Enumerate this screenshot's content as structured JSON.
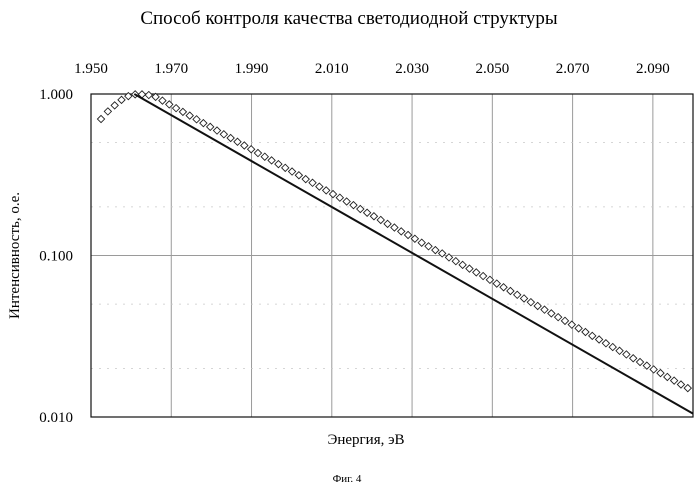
{
  "caption": "Фиг. 4",
  "chart_data": {
    "type": "scatter",
    "title": "Способ контроля качества светодиодной структуры",
    "xlabel": "Энергия, эВ",
    "ylabel": "Интенсивность, о.е.",
    "x_axis_position": "top",
    "x_tick_labels": [
      "1.950",
      "1.970",
      "1.990",
      "2.010",
      "2.030",
      "2.050",
      "2.070",
      "2.090"
    ],
    "x_ticks": [
      1.95,
      1.97,
      1.99,
      2.01,
      2.03,
      2.05,
      2.07,
      2.09
    ],
    "xlim": [
      1.95,
      2.1
    ],
    "y_tick_labels": [
      "1.000",
      "0.100",
      "0.010"
    ],
    "y_ticks": [
      1.0,
      0.1,
      0.01
    ],
    "ylim": [
      0.01,
      1.0
    ],
    "y_scale": "log",
    "grid": true,
    "colors": {
      "line": "#111111",
      "markers": "#222222",
      "grid": "#9a9a9a"
    },
    "series": [
      {
        "marker": "diamond-open",
        "x": [
          1.9525,
          1.9542,
          1.9559,
          1.9576,
          1.9593,
          1.961,
          1.9627,
          1.9644,
          1.9661,
          1.9678,
          1.9695,
          1.9712,
          1.9729,
          1.9746,
          1.9763,
          1.978,
          1.9797,
          1.9814,
          1.9831,
          1.9848,
          1.9865,
          1.9882,
          1.9899,
          1.9916,
          1.9933,
          1.995,
          1.9967,
          1.9984,
          2.0001,
          2.0018,
          2.0035,
          2.0052,
          2.0069,
          2.0086,
          2.0103,
          2.012,
          2.0137,
          2.0154,
          2.0171,
          2.0188,
          2.0205,
          2.0222,
          2.0239,
          2.0256,
          2.0273,
          2.029,
          2.0307,
          2.0324,
          2.0341,
          2.0358,
          2.0375,
          2.0392,
          2.0409,
          2.0426,
          2.0443,
          2.046,
          2.0477,
          2.0494,
          2.0511,
          2.0528,
          2.0545,
          2.0562,
          2.0579,
          2.0596,
          2.0613,
          2.063,
          2.0647,
          2.0664,
          2.0681,
          2.0698,
          2.0715,
          2.0732,
          2.0749,
          2.0766,
          2.0783,
          2.08,
          2.0817,
          2.0834,
          2.0851,
          2.0868,
          2.0885,
          2.0902,
          2.0919,
          2.0936,
          2.0953,
          2.097,
          2.0987
        ],
        "y": [
          0.7,
          0.78,
          0.85,
          0.92,
          0.97,
          0.995,
          0.995,
          0.985,
          0.96,
          0.91,
          0.862,
          0.817,
          0.775,
          0.735,
          0.697,
          0.66,
          0.626,
          0.594,
          0.563,
          0.534,
          0.506,
          0.48,
          0.455,
          0.431,
          0.409,
          0.388,
          0.368,
          0.349,
          0.331,
          0.314,
          0.297,
          0.282,
          0.267,
          0.253,
          0.24,
          0.228,
          0.216,
          0.205,
          0.194,
          0.184,
          0.175,
          0.166,
          0.157,
          0.149,
          0.141,
          0.134,
          0.127,
          0.12,
          0.114,
          0.108,
          0.103,
          0.0973,
          0.0922,
          0.0875,
          0.0829,
          0.0786,
          0.0746,
          0.0707,
          0.067,
          0.0636,
          0.0603,
          0.0571,
          0.0542,
          0.0514,
          0.0487,
          0.0462,
          0.0438,
          0.0415,
          0.0394,
          0.0373,
          0.0354,
          0.0336,
          0.0318,
          0.0302,
          0.0286,
          0.0271,
          0.0257,
          0.0244,
          0.0231,
          0.0219,
          0.0208,
          0.0197,
          0.0187,
          0.0177,
          0.0168,
          0.0159,
          0.0151
        ]
      },
      {
        "style": "line",
        "x": [
          1.9608,
          2.1
        ],
        "y": [
          1.0,
          0.0105
        ]
      }
    ]
  }
}
